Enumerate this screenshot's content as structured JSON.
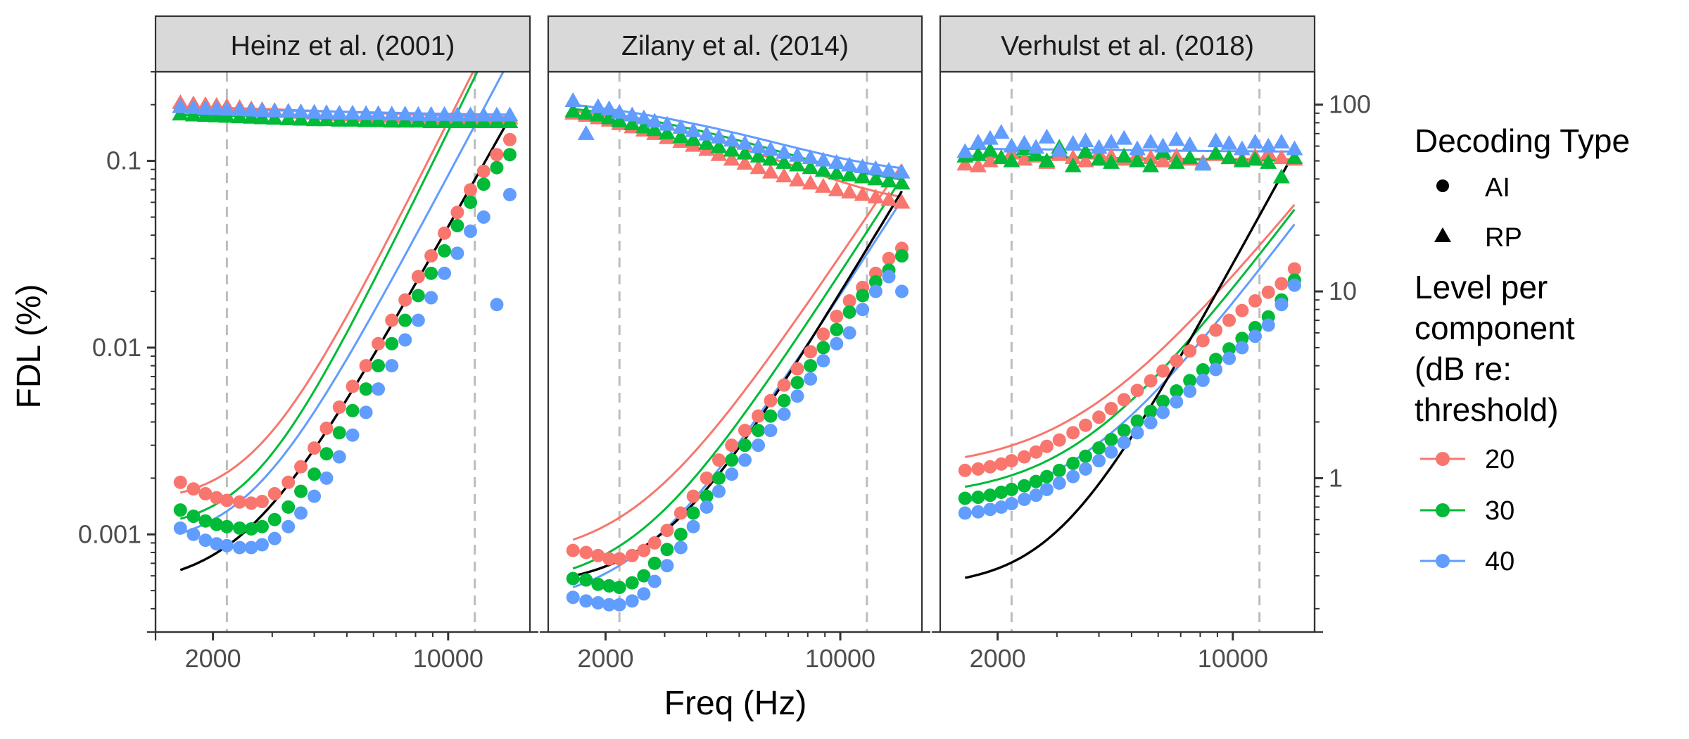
{
  "chart_data": {
    "type": "scatter",
    "xlabel": "Freq (Hz)",
    "ylabel": "FDL (%)",
    "x_scale": "log",
    "y_scale": "log",
    "xlim": [
      1350,
      17500
    ],
    "ylim_left": [
      0.0003,
      0.3
    ],
    "ylim_right": [
      0.15,
      150
    ],
    "x_ticks": [
      2000,
      10000
    ],
    "x_tick_labels": [
      "2000",
      "10000"
    ],
    "y_ticks_left": [
      0.001,
      0.01,
      0.1
    ],
    "y_tick_labels_left": [
      "0.001",
      "0.01",
      "0.1"
    ],
    "y_ticks_right": [
      1,
      10,
      100
    ],
    "y_tick_labels_right": [
      "1",
      "10",
      "100"
    ],
    "reference_lines_x": [
      2200,
      12000
    ],
    "grid": false,
    "legend_position": "right",
    "legend": {
      "shape_title": "Decoding Type",
      "shape_items": [
        {
          "key": "AI",
          "label": "AI",
          "shape": "circle"
        },
        {
          "key": "RP",
          "label": "RP",
          "shape": "triangle"
        }
      ],
      "color_title_lines": [
        "Level per",
        "component",
        "(dB re:",
        "threshold)"
      ],
      "color_items": [
        {
          "key": "20",
          "label": "20",
          "color": "#F8766D"
        },
        {
          "key": "30",
          "label": "30",
          "color": "#00BA38"
        },
        {
          "key": "40",
          "label": "40",
          "color": "#619CFF"
        }
      ]
    },
    "reference_curve_color": "#000000",
    "panels": [
      {
        "title": "Heinz et al. (2001)",
        "frequencies": [
          1600,
          1750,
          1900,
          2050,
          2200,
          2400,
          2600,
          2800,
          3050,
          3350,
          3650,
          4000,
          4350,
          4750,
          5200,
          5700,
          6200,
          6800,
          7450,
          8150,
          8900,
          9750,
          10650,
          11650,
          12750,
          13950,
          15250
        ],
        "AI": {
          "20": [
            0.0019,
            0.00175,
            0.00165,
            0.00157,
            0.00152,
            0.00149,
            0.00147,
            0.0015,
            0.00165,
            0.0019,
            0.0023,
            0.0029,
            0.0037,
            0.0048,
            0.0062,
            0.008,
            0.0105,
            0.014,
            0.018,
            0.024,
            0.031,
            0.041,
            0.053,
            0.07,
            0.088,
            0.108,
            0.13
          ],
          "30": [
            0.00135,
            0.00125,
            0.00118,
            0.00113,
            0.0011,
            0.00108,
            0.00107,
            0.0011,
            0.0012,
            0.0014,
            0.0017,
            0.0021,
            0.0027,
            0.0035,
            0.0046,
            0.006,
            0.008,
            0.0105,
            0.014,
            0.019,
            0.025,
            0.033,
            0.045,
            0.06,
            0.075,
            0.092,
            0.108
          ],
          "40": [
            0.00108,
            0.001,
            0.00093,
            0.00089,
            0.00087,
            0.00085,
            0.00085,
            0.00088,
            0.00095,
            0.0011,
            0.0013,
            0.0016,
            0.002,
            0.0026,
            0.0034,
            0.0045,
            0.006,
            0.008,
            0.011,
            0.014,
            0.0185,
            0.025,
            0.032,
            0.042,
            0.05,
            0.017,
            0.066
          ]
        },
        "RP": {
          "20": [
            0.205,
            0.202,
            0.2,
            0.198,
            0.196,
            0.193,
            0.19,
            0.188,
            0.186,
            0.184,
            0.182,
            0.18,
            0.178,
            0.177,
            0.176,
            0.175,
            0.174,
            0.173,
            0.172,
            0.172,
            0.171,
            0.171,
            0.17,
            0.17,
            0.17,
            0.17,
            0.17
          ],
          "30": [
            0.178,
            0.176,
            0.175,
            0.174,
            0.173,
            0.172,
            0.171,
            0.17,
            0.169,
            0.168,
            0.167,
            0.166,
            0.166,
            0.165,
            0.165,
            0.164,
            0.164,
            0.163,
            0.163,
            0.163,
            0.162,
            0.162,
            0.162,
            0.162,
            0.162,
            0.162,
            0.162
          ],
          "40": [
            0.195,
            0.193,
            0.191,
            0.19,
            0.189,
            0.188,
            0.187,
            0.186,
            0.185,
            0.184,
            0.183,
            0.182,
            0.181,
            0.18,
            0.18,
            0.179,
            0.179,
            0.178,
            0.178,
            0.177,
            0.177,
            0.177,
            0.176,
            0.176,
            0.176,
            0.176,
            0.176
          ]
        },
        "fits": {
          "20": {
            "min": 0.00145,
            "fc": 2700,
            "p": 3.6
          },
          "30": {
            "min": 0.00105,
            "fc": 2650,
            "p": 3.7
          },
          "40": {
            "min": 0.00085,
            "fc": 2600,
            "p": 3.4
          },
          "rp20": {
            "a": 0.195,
            "b": 0.17,
            "c": 5000
          },
          "rp30": {
            "a": 0.176,
            "b": 0.162,
            "c": 5000
          },
          "rp40": {
            "a": 0.19,
            "b": 0.176,
            "c": 5000
          }
        },
        "reference_curve": {
          "min": 0.00052,
          "fc": 2500,
          "p": 3.2
        }
      },
      {
        "title": "Zilany et al. (2014)",
        "frequencies": [
          1600,
          1750,
          1900,
          2050,
          2200,
          2400,
          2600,
          2800,
          3050,
          3350,
          3650,
          4000,
          4350,
          4750,
          5200,
          5700,
          6200,
          6800,
          7450,
          8150,
          8900,
          9750,
          10650,
          11650,
          12750,
          13950,
          15250
        ],
        "AI": {
          "20": [
            0.00082,
            0.0008,
            0.00077,
            0.00074,
            0.00074,
            0.00077,
            0.00082,
            0.0009,
            0.00105,
            0.0013,
            0.0016,
            0.002,
            0.0025,
            0.003,
            0.0036,
            0.0043,
            0.0052,
            0.0063,
            0.0077,
            0.0095,
            0.0118,
            0.0147,
            0.0178,
            0.021,
            0.025,
            0.03,
            0.034
          ],
          "30": [
            0.00058,
            0.00057,
            0.00054,
            0.00053,
            0.00052,
            0.00055,
            0.0006,
            0.0007,
            0.00083,
            0.001,
            0.0013,
            0.0016,
            0.002,
            0.0025,
            0.003,
            0.0036,
            0.0043,
            0.0052,
            0.0065,
            0.008,
            0.01,
            0.0125,
            0.0155,
            0.019,
            0.0225,
            0.026,
            0.031
          ],
          "40": [
            0.00046,
            0.00044,
            0.00043,
            0.00042,
            0.00042,
            0.00044,
            0.00048,
            0.00056,
            0.00068,
            0.00085,
            0.0011,
            0.0014,
            0.0017,
            0.0021,
            0.0025,
            0.003,
            0.0036,
            0.0044,
            0.0055,
            0.0068,
            0.0085,
            0.0105,
            0.012,
            0.016,
            0.02,
            0.024,
            0.02
          ]
        },
        "RP": {
          "20": [
            0.18,
            0.175,
            0.17,
            0.165,
            0.158,
            0.152,
            0.146,
            0.14,
            0.133,
            0.127,
            0.121,
            0.115,
            0.108,
            0.102,
            0.097,
            0.092,
            0.087,
            0.083,
            0.079,
            0.076,
            0.073,
            0.07,
            0.068,
            0.066,
            0.064,
            0.062,
            0.06
          ],
          "30": [
            0.185,
            0.18,
            0.176,
            0.17,
            0.164,
            0.158,
            0.152,
            0.147,
            0.141,
            0.135,
            0.13,
            0.124,
            0.119,
            0.114,
            0.11,
            0.106,
            0.102,
            0.098,
            0.095,
            0.092,
            0.089,
            0.086,
            0.084,
            0.082,
            0.08,
            0.078,
            0.076
          ],
          "40": [
            0.21,
            0.14,
            0.195,
            0.19,
            0.182,
            0.176,
            0.17,
            0.163,
            0.157,
            0.151,
            0.145,
            0.139,
            0.134,
            0.129,
            0.124,
            0.119,
            0.115,
            0.111,
            0.107,
            0.104,
            0.101,
            0.098,
            0.095,
            0.093,
            0.091,
            0.089,
            0.087
          ]
        },
        "fits": {
          "20": {
            "min": 0.00072,
            "fc": 2500,
            "p": 2.7
          },
          "30": {
            "min": 0.00051,
            "fc": 2500,
            "p": 2.8
          },
          "40": {
            "min": 0.00041,
            "fc": 2550,
            "p": 2.8
          },
          "rp20": {
            "a": 0.185,
            "b": 0.058,
            "c": 4500
          },
          "rp30": {
            "a": 0.19,
            "b": 0.074,
            "c": 4500
          },
          "rp40": {
            "a": 0.2,
            "b": 0.086,
            "c": 4500
          }
        },
        "reference_curve": {
          "min": 0.00052,
          "fc": 3000,
          "p": 3.0
        }
      },
      {
        "title": "Verhulst et al. (2018)",
        "frequencies": [
          1600,
          1750,
          1900,
          2050,
          2200,
          2400,
          2600,
          2800,
          3050,
          3350,
          3650,
          4000,
          4350,
          4750,
          5200,
          5700,
          6200,
          6800,
          7450,
          8150,
          8900,
          9750,
          10650,
          11650,
          12750,
          13950,
          15250
        ],
        "AI": {
          "20": [
            1.1,
            1.12,
            1.15,
            1.19,
            1.24,
            1.3,
            1.38,
            1.48,
            1.6,
            1.75,
            1.92,
            2.12,
            2.36,
            2.63,
            2.95,
            3.32,
            3.75,
            4.25,
            4.8,
            5.45,
            6.2,
            7.0,
            7.9,
            8.9,
            9.9,
            11.0,
            13.2
          ],
          "30": [
            0.78,
            0.79,
            0.81,
            0.84,
            0.87,
            0.91,
            0.96,
            1.02,
            1.1,
            1.2,
            1.31,
            1.45,
            1.61,
            1.8,
            2.02,
            2.28,
            2.58,
            2.93,
            3.33,
            3.8,
            4.32,
            4.92,
            5.6,
            6.4,
            7.3,
            9.0,
            11.5
          ],
          "40": [
            0.65,
            0.66,
            0.68,
            0.7,
            0.73,
            0.77,
            0.81,
            0.87,
            0.94,
            1.02,
            1.12,
            1.24,
            1.38,
            1.55,
            1.75,
            1.98,
            2.25,
            2.56,
            2.92,
            3.34,
            3.82,
            4.38,
            5.0,
            5.75,
            6.6,
            8.5,
            10.8
          ]
        },
        "RP": {
          "20": [
            48,
            47,
            50,
            52,
            55,
            51,
            53,
            49,
            54,
            52,
            50,
            55,
            53,
            51,
            54,
            52,
            50,
            53,
            51,
            49,
            54,
            52,
            51,
            53,
            55,
            52,
            51
          ],
          "30": [
            53,
            54,
            57,
            52,
            50,
            58,
            54,
            50,
            59,
            47,
            56,
            51,
            49,
            53,
            50,
            47,
            56,
            49,
            52,
            48,
            55,
            52,
            50,
            51,
            49,
            41,
            52
          ],
          "40": [
            56,
            63,
            66,
            71,
            60,
            62,
            59,
            67,
            57,
            62,
            64,
            59,
            63,
            66,
            58,
            63,
            60,
            65,
            61,
            48,
            64,
            62,
            58,
            63,
            60,
            63,
            58
          ]
        },
        "fits": {
          "20": {
            "min": 1.1,
            "fc": 3500,
            "p": 2.2
          },
          "30": {
            "min": 0.78,
            "fc": 3500,
            "p": 2.4
          },
          "40": {
            "min": 0.65,
            "fc": 3500,
            "p": 2.4
          },
          "rp20": {
            "a": 52,
            "b": 51,
            "c": 5000
          },
          "rp30": {
            "a": 53,
            "b": 50,
            "c": 5000
          },
          "rp40": {
            "a": 58,
            "b": 56,
            "c": 5000
          }
        },
        "reference_curve": {
          "min": 0.26,
          "fc": 3000,
          "p": 3.3
        }
      }
    ]
  }
}
